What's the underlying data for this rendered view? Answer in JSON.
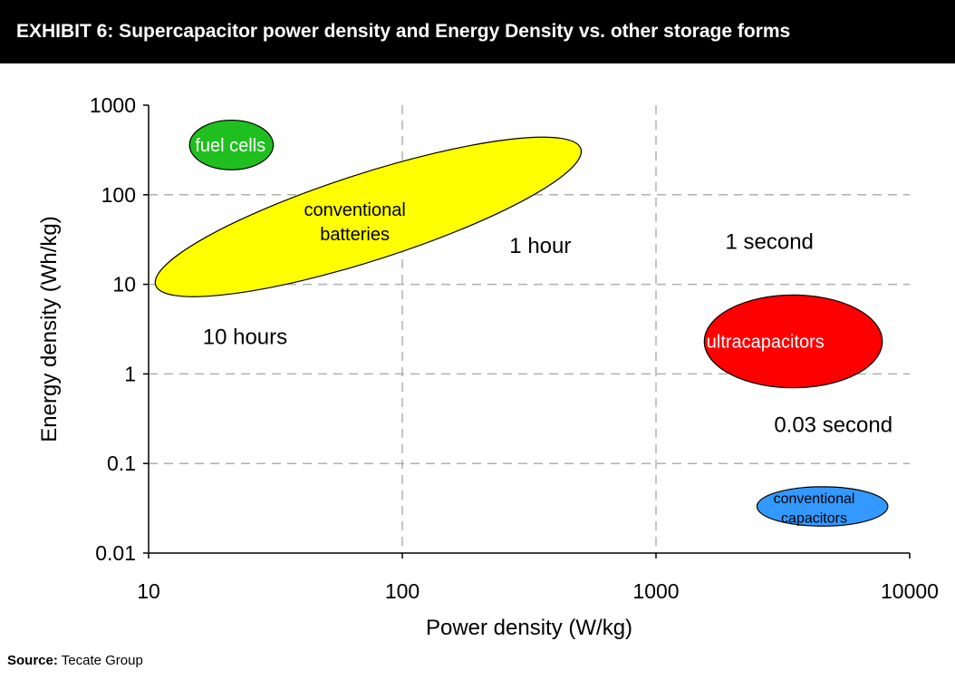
{
  "header": {
    "title": "EXHIBIT 6: Supercapacitor power density and Energy Density vs. other storage forms"
  },
  "source": {
    "label": "Source:",
    "text": "Tecate Group"
  },
  "chart_data": {
    "type": "scatter",
    "title": "",
    "xlabel": "Power density (W/kg)",
    "ylabel": "Energy density (Wh/kg)",
    "x_scale": "log",
    "y_scale": "log",
    "xlim": [
      10,
      10000
    ],
    "ylim": [
      0.01,
      1000
    ],
    "x_ticks": [
      "10",
      "100",
      "1000",
      "10000"
    ],
    "y_ticks": [
      "0.01",
      "0.1",
      "1",
      "10",
      "100",
      "1000"
    ],
    "grid": "dashed, major ticks",
    "regions": [
      {
        "name": "fuel cells",
        "lines": [
          "fuel cells"
        ],
        "color": "#1fbf1f",
        "text_color": "#ffffff",
        "center": [
          21,
          360
        ],
        "x_range": [
          14.5,
          31
        ],
        "y_range": [
          190,
          680
        ]
      },
      {
        "name": "conventional batteries",
        "lines": [
          "conventional",
          "batteries"
        ],
        "color": "#ffff00",
        "text_color": "#000000",
        "center": [
          65,
          50
        ],
        "x_range": [
          11,
          490
        ],
        "y_range": [
          8,
          400
        ],
        "tilted": true
      },
      {
        "name": "ultracapacitors",
        "lines": [
          "ultracapacitors"
        ],
        "color": "#ff0000",
        "text_color": "#ffffff",
        "center": [
          2700,
          2.3
        ],
        "x_range": [
          1550,
          7800
        ],
        "y_range": [
          0.7,
          7.6
        ]
      },
      {
        "name": "conventional capacitors",
        "lines": [
          "conventional",
          "capacitors"
        ],
        "color": "#3399ff",
        "text_color": "#000000",
        "center": [
          4200,
          0.032
        ],
        "x_range": [
          2500,
          8200
        ],
        "y_range": [
          0.02,
          0.055
        ]
      }
    ],
    "annotations": [
      {
        "text": "10 hours",
        "x": 24,
        "y": 2.6
      },
      {
        "text": "1 hour",
        "x": 350,
        "y": 27
      },
      {
        "text": "1 second",
        "x": 2800,
        "y": 30
      },
      {
        "text": "0.03 second",
        "x": 5000,
        "y": 0.27
      }
    ],
    "colors": {
      "axis": "#000000",
      "grid": "#b0b0b0",
      "background": "#ffffff"
    }
  }
}
